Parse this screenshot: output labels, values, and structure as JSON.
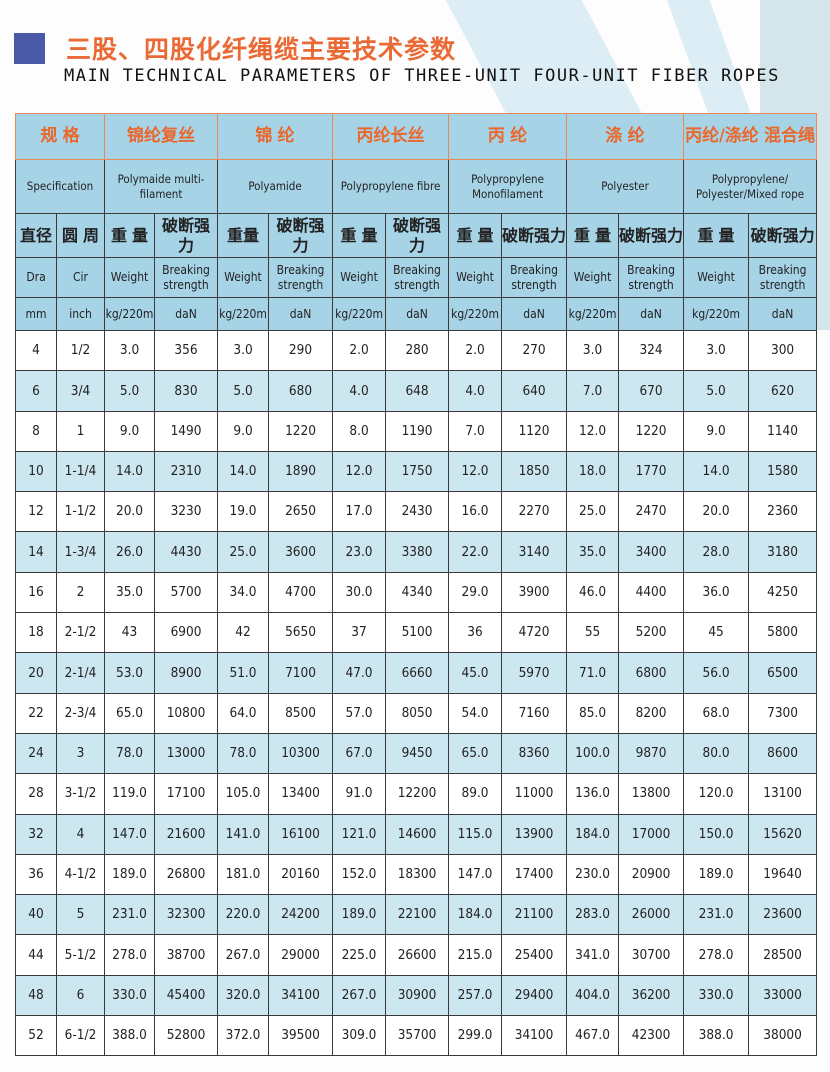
{
  "title_cn": "三股、四股化纤绳缆主要技术参数",
  "title_en": "MAIN TECHNICAL PARAMETERS OF THREE-UNIT FOUR-UNIT FIBER ROPES",
  "colors": {
    "accent": "#ea6a35",
    "header_bg": "#a7d3e7",
    "row_alt": "#cde7f1",
    "square": "#4a5aa8"
  },
  "header": {
    "cn": [
      "规 格",
      "锦纶复丝",
      "锦 纶",
      "丙纶长丝",
      "丙 纶",
      "涤 纶",
      "丙纶/涤纶 混合绳"
    ],
    "en": [
      "Specification",
      "Polymaide multi-filament",
      "Polyamide",
      "Polypropylene fibre",
      "Polypropylene Monofilament",
      "Polyester",
      "Polypropylene/ Polyester/Mixed rope"
    ],
    "cn_sub": [
      "直径",
      "圆 周",
      "重 量",
      "破断强力",
      "重量",
      "破断强力",
      "重 量",
      "破断强力",
      "重 量",
      "破断强力",
      "重 量",
      "破断强力",
      "重 量",
      "破断强力"
    ],
    "en_sub": [
      "Dra",
      "Cir",
      "Weight",
      "Breaking strength",
      "Weight",
      "Breaking strength",
      "Weight",
      "Breaking strength",
      "Weight",
      "Breaking strength",
      "Weight",
      "Breaking strength",
      "Weight",
      "Breaking strength"
    ],
    "units": [
      "mm",
      "inch",
      "kg/220m",
      "daN",
      "kg/220m",
      "daN",
      "kg/220m",
      "daN",
      "kg/220m",
      "daN",
      "kg/220m",
      "daN",
      "kg/220m",
      "daN"
    ]
  },
  "rows": [
    [
      "4",
      "1/2",
      "3.0",
      "356",
      "3.0",
      "290",
      "2.0",
      "280",
      "2.0",
      "270",
      "3.0",
      "324",
      "3.0",
      "300"
    ],
    [
      "6",
      "3/4",
      "5.0",
      "830",
      "5.0",
      "680",
      "4.0",
      "648",
      "4.0",
      "640",
      "7.0",
      "670",
      "5.0",
      "620"
    ],
    [
      "8",
      "1",
      "9.0",
      "1490",
      "9.0",
      "1220",
      "8.0",
      "1190",
      "7.0",
      "1120",
      "12.0",
      "1220",
      "9.0",
      "1140"
    ],
    [
      "10",
      "1-1/4",
      "14.0",
      "2310",
      "14.0",
      "1890",
      "12.0",
      "1750",
      "12.0",
      "1850",
      "18.0",
      "1770",
      "14.0",
      "1580"
    ],
    [
      "12",
      "1-1/2",
      "20.0",
      "3230",
      "19.0",
      "2650",
      "17.0",
      "2430",
      "16.0",
      "2270",
      "25.0",
      "2470",
      "20.0",
      "2360"
    ],
    [
      "14",
      "1-3/4",
      "26.0",
      "4430",
      "25.0",
      "3600",
      "23.0",
      "3380",
      "22.0",
      "3140",
      "35.0",
      "3400",
      "28.0",
      "3180"
    ],
    [
      "16",
      "2",
      "35.0",
      "5700",
      "34.0",
      "4700",
      "30.0",
      "4340",
      "29.0",
      "3900",
      "46.0",
      "4400",
      "36.0",
      "4250"
    ],
    [
      "18",
      "2-1/2",
      "43",
      "6900",
      "42",
      "5650",
      "37",
      "5100",
      "36",
      "4720",
      "55",
      "5200",
      "45",
      "5800"
    ],
    [
      "20",
      "2-1/4",
      "53.0",
      "8900",
      "51.0",
      "7100",
      "47.0",
      "6660",
      "45.0",
      "5970",
      "71.0",
      "6800",
      "56.0",
      "6500"
    ],
    [
      "22",
      "2-3/4",
      "65.0",
      "10800",
      "64.0",
      "8500",
      "57.0",
      "8050",
      "54.0",
      "7160",
      "85.0",
      "8200",
      "68.0",
      "7300"
    ],
    [
      "24",
      "3",
      "78.0",
      "13000",
      "78.0",
      "10300",
      "67.0",
      "9450",
      "65.0",
      "8360",
      "100.0",
      "9870",
      "80.0",
      "8600"
    ],
    [
      "28",
      "3-1/2",
      "119.0",
      "17100",
      "105.0",
      "13400",
      "91.0",
      "12200",
      "89.0",
      "11000",
      "136.0",
      "13800",
      "120.0",
      "13100"
    ],
    [
      "32",
      "4",
      "147.0",
      "21600",
      "141.0",
      "16100",
      "121.0",
      "14600",
      "115.0",
      "13900",
      "184.0",
      "17000",
      "150.0",
      "15620"
    ],
    [
      "36",
      "4-1/2",
      "189.0",
      "26800",
      "181.0",
      "20160",
      "152.0",
      "18300",
      "147.0",
      "17400",
      "230.0",
      "20900",
      "189.0",
      "19640"
    ],
    [
      "40",
      "5",
      "231.0",
      "32300",
      "220.0",
      "24200",
      "189.0",
      "22100",
      "184.0",
      "21100",
      "283.0",
      "26000",
      "231.0",
      "23600"
    ],
    [
      "44",
      "5-1/2",
      "278.0",
      "38700",
      "267.0",
      "29000",
      "225.0",
      "26600",
      "215.0",
      "25400",
      "341.0",
      "30700",
      "278.0",
      "28500"
    ],
    [
      "48",
      "6",
      "330.0",
      "45400",
      "320.0",
      "34100",
      "267.0",
      "30900",
      "257.0",
      "29400",
      "404.0",
      "36200",
      "330.0",
      "33000"
    ],
    [
      "52",
      "6-1/2",
      "388.0",
      "52800",
      "372.0",
      "39500",
      "309.0",
      "35700",
      "299.0",
      "34100",
      "467.0",
      "42300",
      "388.0",
      "38000"
    ]
  ],
  "blue_rows": [
    1,
    3,
    5,
    8,
    10,
    12,
    14,
    16
  ]
}
